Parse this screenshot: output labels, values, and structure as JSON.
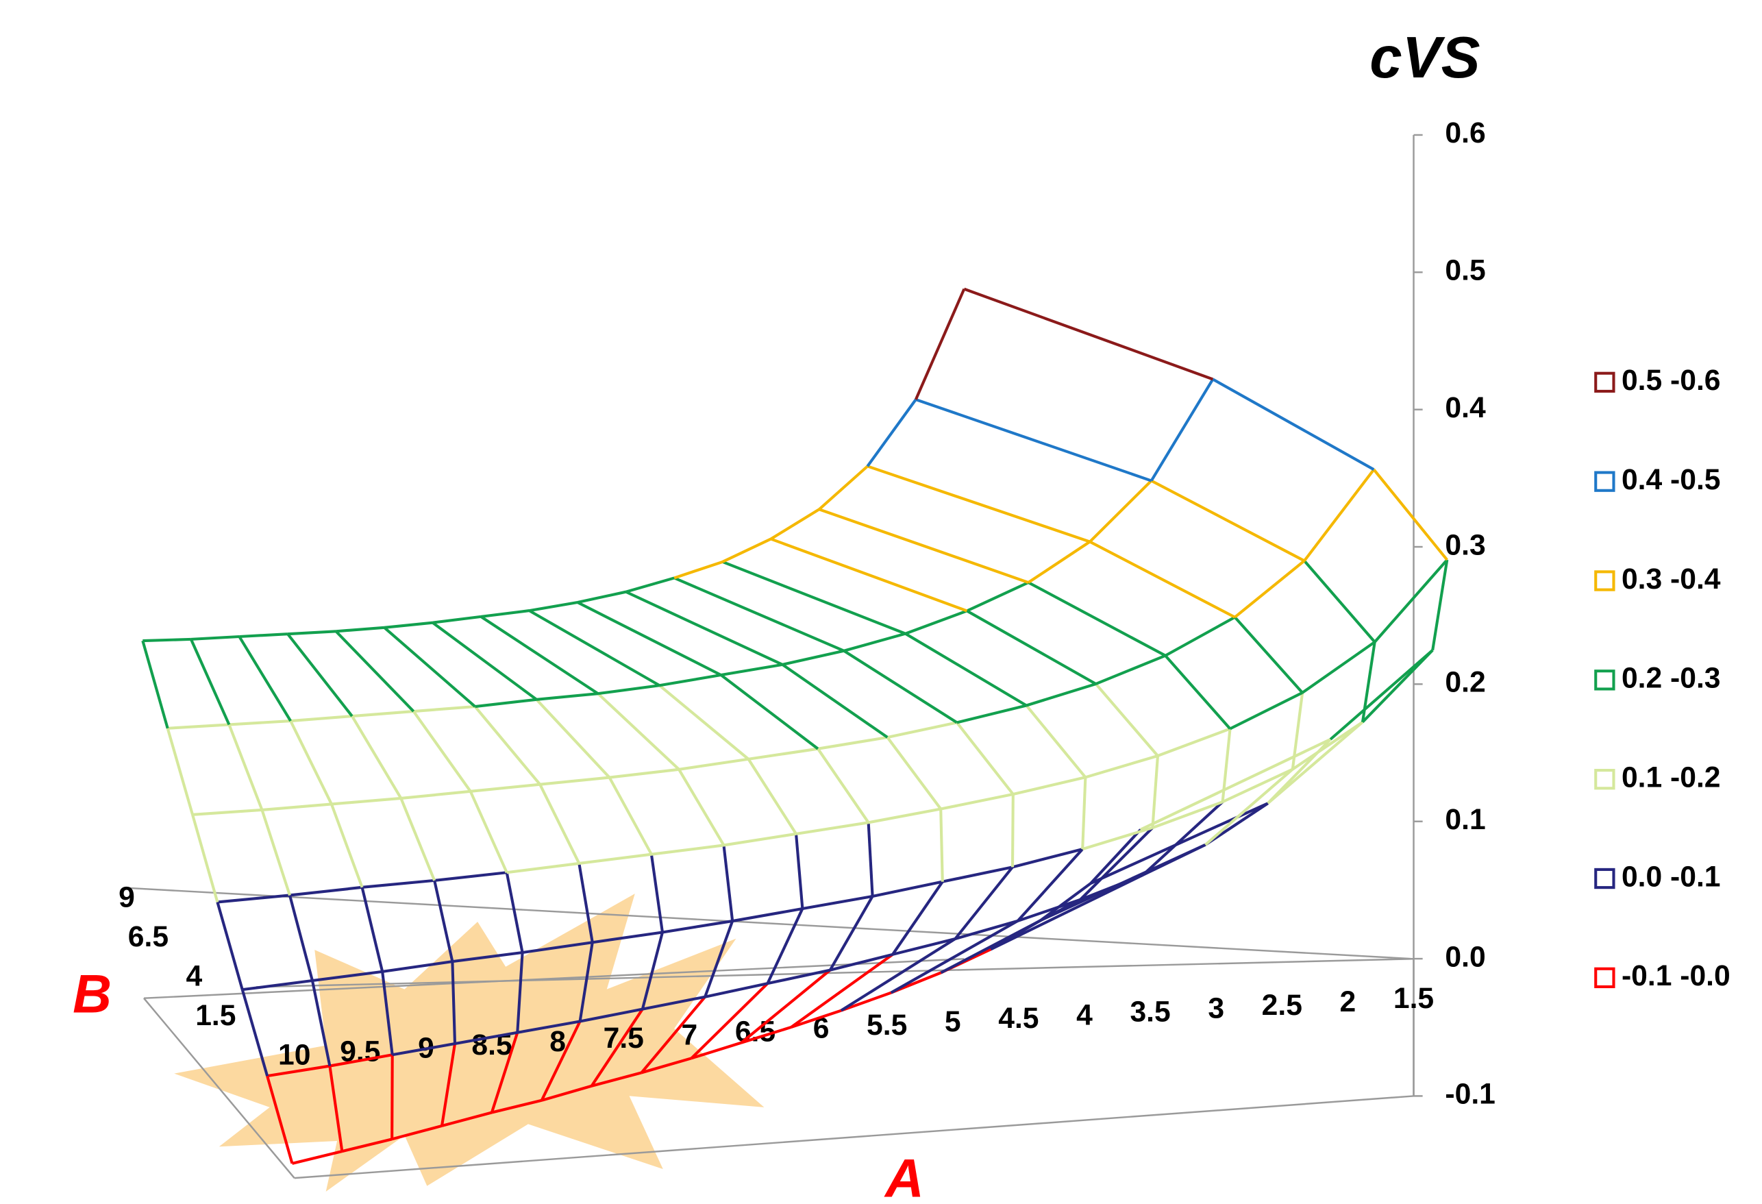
{
  "chart_data": {
    "type": "surface",
    "title": "cVS",
    "x_label": "A",
    "y_label": "B",
    "x": [
      10,
      9.5,
      9,
      8.5,
      8,
      7.5,
      7,
      6.5,
      6,
      5.5,
      5,
      4.5,
      4,
      3.5,
      3,
      2.5,
      2,
      1.5
    ],
    "y": [
      1.5,
      null,
      4,
      null,
      6.5,
      null,
      9
    ],
    "values": [
      [
        -0.05,
        -0.049,
        -0.048,
        -0.046,
        -0.044,
        -0.043,
        -0.04,
        -0.038,
        -0.035,
        -0.031,
        -0.027,
        -0.022,
        -0.016,
        -0.008,
        0.003,
        0.019,
        0.042,
        0.08
      ],
      [
        -0.003,
        -0.002,
        0.0,
        0.002,
        0.004,
        0.006,
        0.009,
        0.012,
        0.016,
        0.02,
        0.026,
        0.032,
        0.04,
        0.051,
        0.065,
        0.084,
        0.113,
        0.162
      ],
      [
        0.043,
        0.045,
        0.047,
        0.05,
        0.052,
        0.055,
        0.058,
        0.062,
        0.067,
        0.072,
        0.079,
        0.086,
        0.096,
        0.109,
        0.126,
        0.149,
        0.185,
        0.243
      ],
      [
        0.09,
        0.092,
        0.095,
        0.097,
        0.1,
        0.104,
        0.108,
        0.112,
        0.118,
        0.124,
        0.132,
        0.141,
        0.152,
        0.167,
        0.187,
        0.215,
        0.256,
        0.325
      ],
      [
        0.137,
        0.139,
        0.142,
        0.145,
        0.149,
        0.153,
        0.157,
        0.162,
        0.169,
        0.176,
        0.184,
        0.195,
        0.208,
        0.225,
        0.248,
        0.28,
        0.328,
        0.407
      ],
      [
        0.183,
        0.186,
        0.189,
        0.193,
        0.197,
        0.201,
        0.207,
        0.212,
        0.219,
        0.228,
        0.237,
        0.249,
        0.264,
        0.284,
        0.309,
        0.345,
        0.399,
        0.489
      ],
      [
        0.23,
        0.233,
        0.237,
        0.241,
        0.245,
        0.25,
        0.256,
        0.263,
        0.27,
        0.279,
        0.29,
        0.304,
        0.32,
        0.342,
        0.37,
        0.41,
        0.471,
        0.571
      ]
    ],
    "zlim": [
      -0.1,
      0.6
    ],
    "zticks": [
      0.6,
      0.5,
      0.4,
      0.3,
      0.2,
      0.1,
      {
        "value": 0,
        "label": "0.0"
      },
      -0.1
    ],
    "bands": [
      {
        "label": "0.5 -0.6",
        "range": [
          0.5,
          0.6
        ],
        "color": "#8b1a1a"
      },
      {
        "label": "0.4 -0.5",
        "range": [
          0.4,
          0.5
        ],
        "color": "#1f78c8"
      },
      {
        "label": "0.3 -0.4",
        "range": [
          0.3,
          0.4
        ],
        "color": "#f5b800"
      },
      {
        "label": "0.2 -0.3",
        "range": [
          0.2,
          0.3
        ],
        "color": "#12a04e"
      },
      {
        "label": "0.1 -0.2",
        "range": [
          0.1,
          0.2
        ],
        "color": "#d5e89c"
      },
      {
        "label": "0.0 -0.1",
        "range": [
          0.0,
          0.1
        ],
        "color": "#262680"
      },
      {
        "label": "-0.1 -0.0",
        "range": [
          -0.1,
          0.0
        ],
        "color": "#ff0000"
      }
    ]
  }
}
